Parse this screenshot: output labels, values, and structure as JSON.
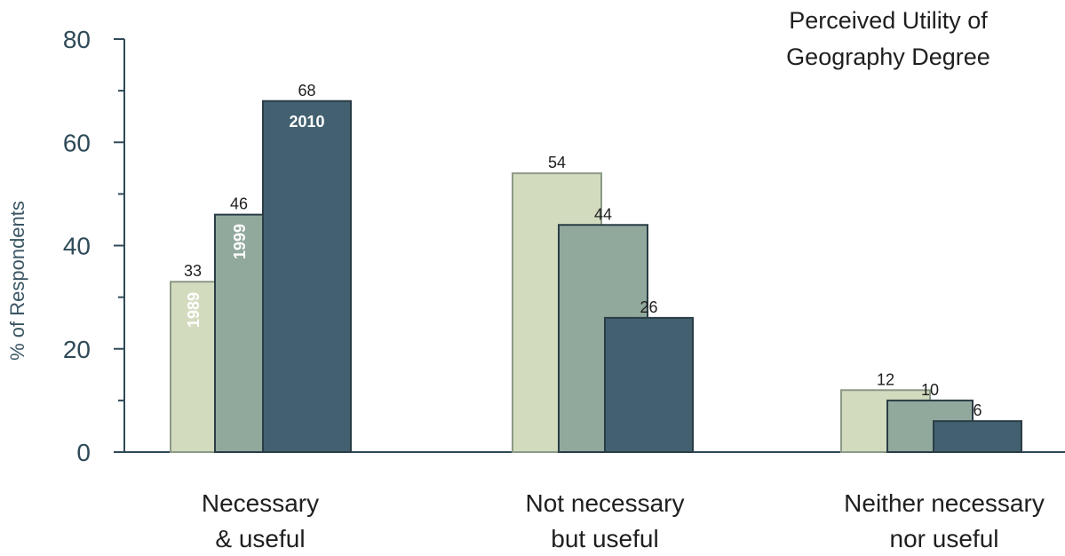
{
  "chart_data": {
    "type": "bar",
    "title": "Perceived Utility  of\nGeography Degree",
    "ylabel": "% of Respondents",
    "xlabel": "",
    "ylim": [
      0,
      80
    ],
    "yticks": [
      0,
      20,
      40,
      60,
      80
    ],
    "grid": false,
    "categories": [
      "Necessary\n& useful",
      "Not necessary\nbut useful",
      "Neither necessary\nnor useful"
    ],
    "series": [
      {
        "name": "1989",
        "color": "#d3dbbf",
        "values": [
          33,
          54,
          12
        ]
      },
      {
        "name": "1999",
        "color": "#91a89d",
        "values": [
          46,
          44,
          10
        ]
      },
      {
        "name": "2010",
        "color": "#426070",
        "values": [
          68,
          26,
          6
        ]
      }
    ]
  },
  "colors": {
    "axis": "#2f4a58",
    "bar_outline": "#2a3d47"
  }
}
